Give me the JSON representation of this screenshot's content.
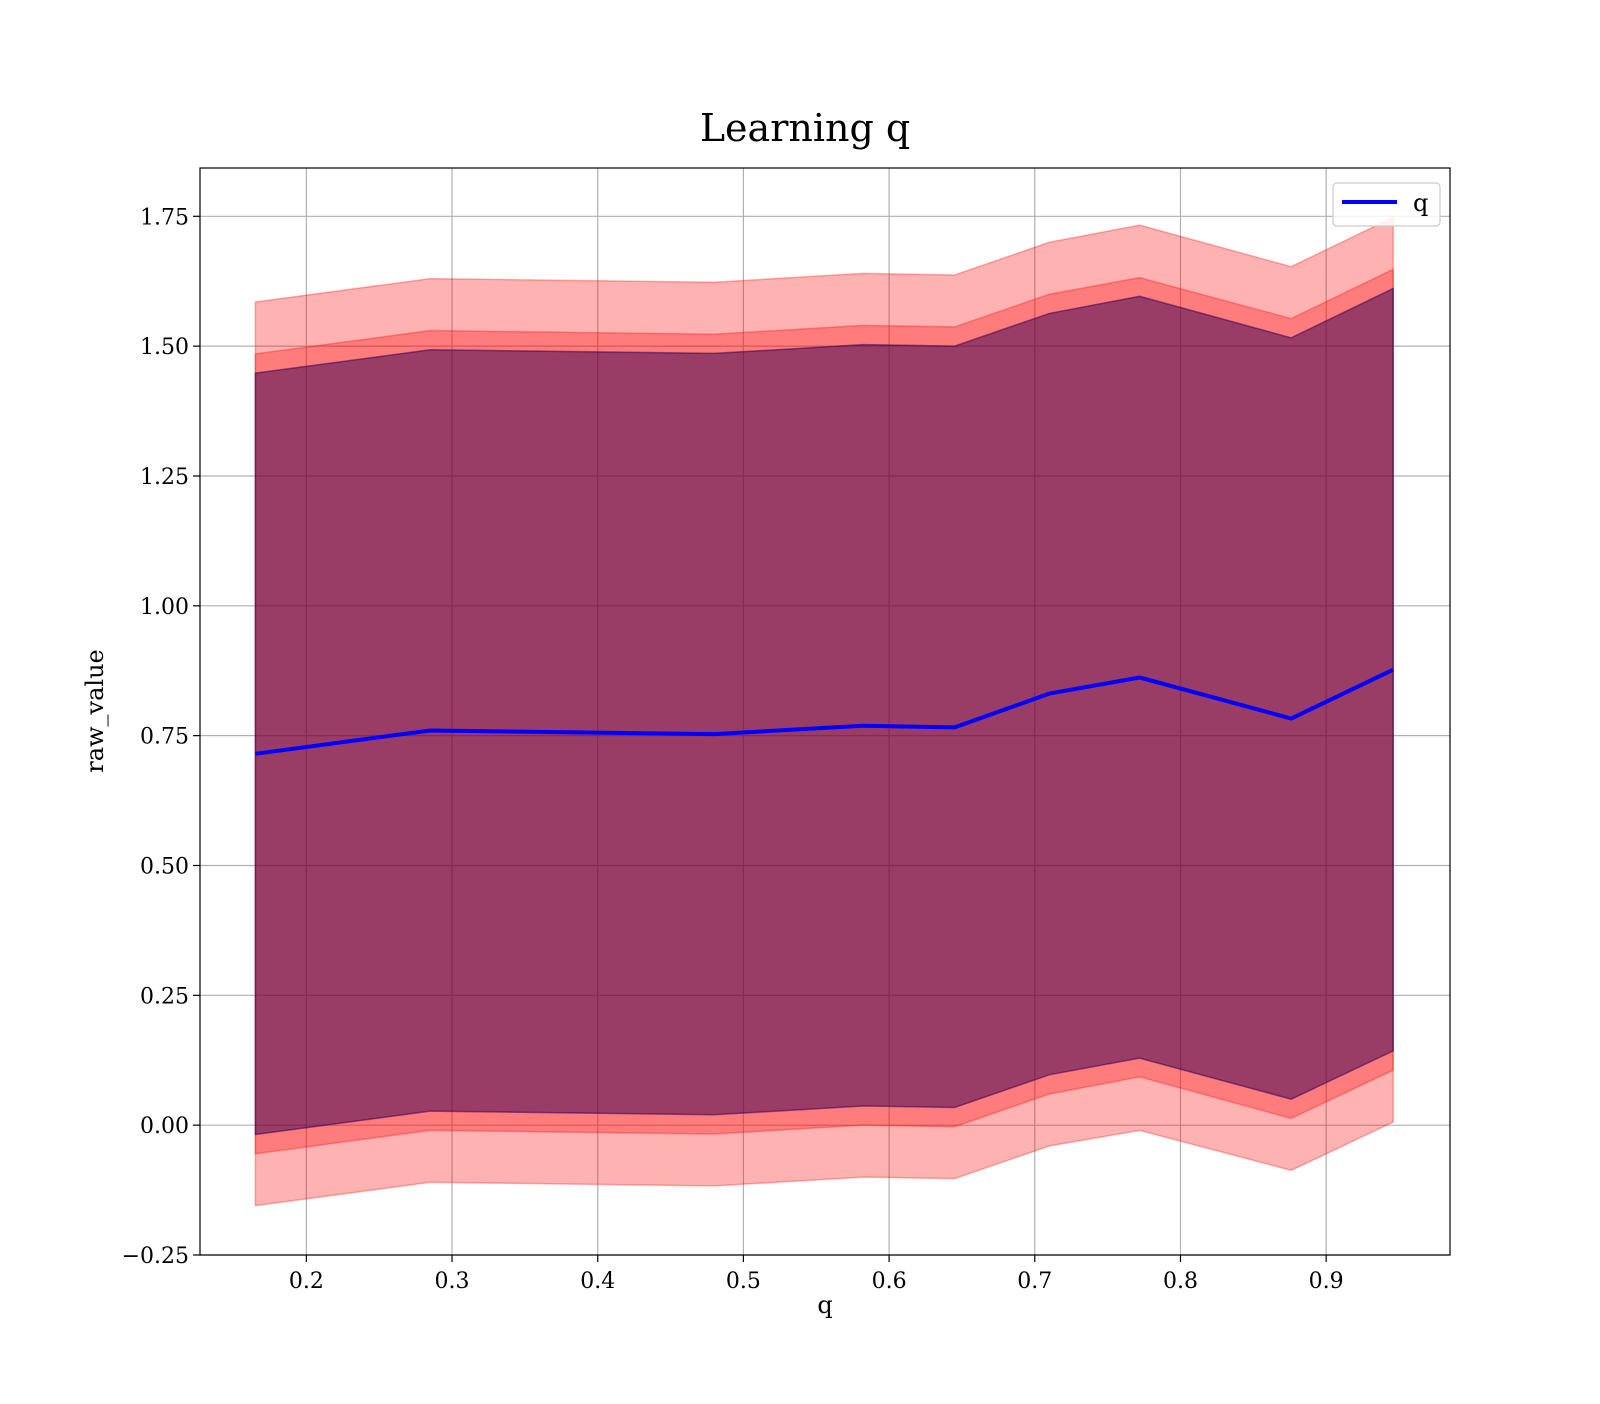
{
  "chart_data": {
    "type": "area",
    "title": "Learning q",
    "xlabel": "q",
    "ylabel": "raw_value",
    "xlim": [
      0.127,
      0.985
    ],
    "ylim": [
      -0.25,
      1.843
    ],
    "x_ticks": [
      0.2,
      0.3,
      0.4,
      0.5,
      0.6,
      0.7,
      0.8,
      0.9
    ],
    "x_tick_labels": [
      "0.2",
      "0.3",
      "0.4",
      "0.5",
      "0.6",
      "0.7",
      "0.8",
      "0.9"
    ],
    "y_ticks": [
      -0.25,
      0.0,
      0.25,
      0.5,
      0.75,
      1.0,
      1.25,
      1.5,
      1.75
    ],
    "y_tick_labels": [
      "−0.25",
      "0.00",
      "0.25",
      "0.50",
      "0.75",
      "1.00",
      "1.25",
      "1.50",
      "1.75"
    ],
    "grid": true,
    "legend": {
      "position": "top-right",
      "entries": [
        "q"
      ]
    },
    "x": [
      0.165,
      0.285,
      0.48,
      0.582,
      0.645,
      0.71,
      0.772,
      0.876,
      0.946
    ],
    "series": [
      {
        "name": "q",
        "color": "#0000ff",
        "values": [
          0.715,
          0.76,
          0.753,
          0.769,
          0.766,
          0.831,
          0.862,
          0.783,
          0.877
        ]
      }
    ],
    "bands": [
      {
        "color": "#ff0000",
        "opacity": 0.3,
        "lower": [
          -0.155,
          -0.11,
          -0.117,
          -0.1,
          -0.103,
          -0.04,
          -0.01,
          -0.087,
          0.006
        ],
        "upper": [
          1.585,
          1.63,
          1.623,
          1.64,
          1.637,
          1.7,
          1.733,
          1.653,
          1.748
        ]
      },
      {
        "color": "#ff0000",
        "opacity": 0.3,
        "lower": [
          -0.055,
          -0.01,
          -0.017,
          0.0,
          -0.003,
          0.06,
          0.093,
          0.013,
          0.106
        ],
        "upper": [
          1.485,
          1.53,
          1.523,
          1.54,
          1.537,
          1.6,
          1.632,
          1.553,
          1.648
        ]
      },
      {
        "color": "#8b0000",
        "opacity": 0.3,
        "lower": [
          -0.018,
          0.027,
          0.02,
          0.037,
          0.034,
          0.097,
          0.129,
          0.05,
          0.143
        ],
        "upper": [
          1.448,
          1.493,
          1.486,
          1.503,
          1.5,
          1.563,
          1.596,
          1.516,
          1.611
        ]
      },
      {
        "color": "#00008b",
        "opacity": 0.3,
        "lower": [
          -0.018,
          0.027,
          0.02,
          0.037,
          0.034,
          0.097,
          0.129,
          0.05,
          0.143
        ],
        "upper": [
          1.448,
          1.493,
          1.486,
          1.503,
          1.5,
          1.563,
          1.596,
          1.516,
          1.611
        ]
      }
    ]
  }
}
